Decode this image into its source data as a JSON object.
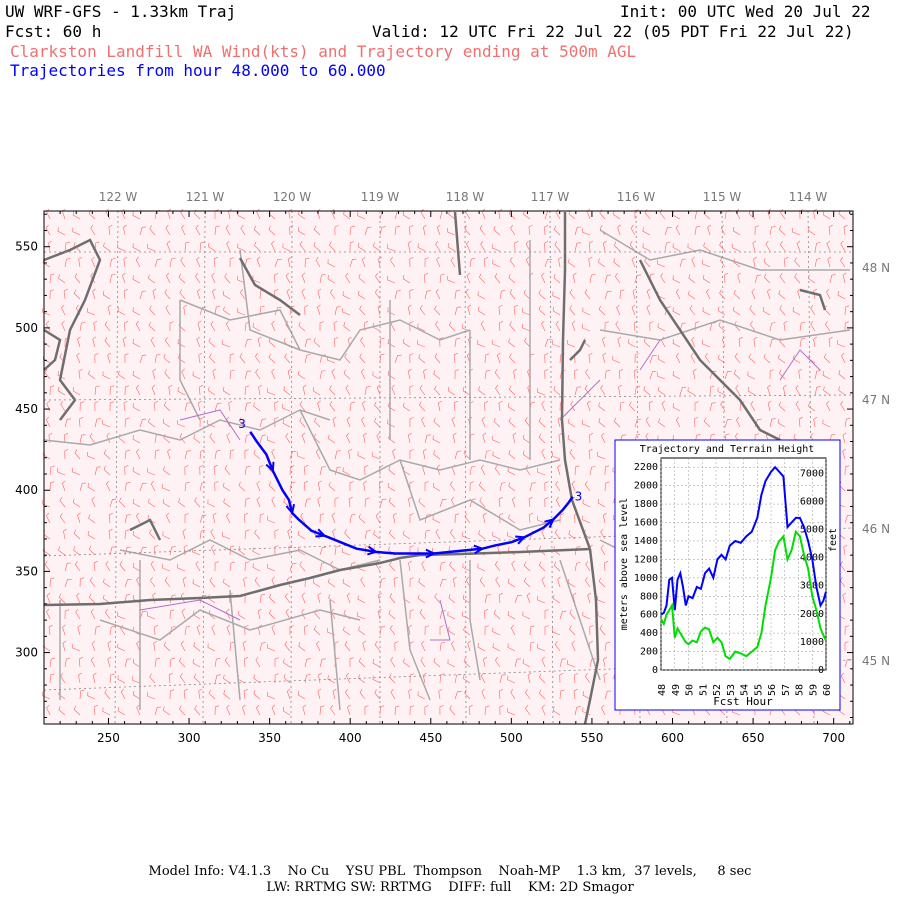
{
  "header": {
    "model": "UW WRF-GFS - 1.33km Traj",
    "init": "Init: 00 UTC Wed 20 Jul 22",
    "fcst": "Fcst:   60 h",
    "valid": "Valid: 12 UTC Fri 22 Jul 22 (05 PDT Fri 22 Jul 22)",
    "subtitle": "Clarkston Landfill WA Wind(kts) and Trajectory ending at 500m AGL",
    "traj_range": "Trajectories from hour  48.000 to  60.000"
  },
  "map": {
    "x_ticks": [
      "250",
      "300",
      "350",
      "400",
      "450",
      "500",
      "550",
      "600",
      "650",
      "700"
    ],
    "x_tick_values": [
      250,
      300,
      350,
      400,
      450,
      500,
      550,
      600,
      650,
      700
    ],
    "y_ticks": [
      "300",
      "350",
      "400",
      "450",
      "500",
      "550"
    ],
    "y_tick_values": [
      300,
      350,
      400,
      450,
      500,
      550
    ],
    "x_range": [
      210,
      712
    ],
    "y_range": [
      256,
      572
    ],
    "lon_labels": [
      "122 W",
      "121 W",
      "120 W",
      "119 W",
      "118 W",
      "117 W",
      "116 W",
      "115 W",
      "114 W"
    ],
    "lat_labels": [
      "48 N",
      "47 N",
      "46 N",
      "45 N"
    ],
    "trajectory_start_label": "3",
    "trajectory_end_label": "3",
    "trajectory_color": "#0000ff",
    "wind_barb_color": "#ff6060",
    "trajectory": [
      [
        338,
        436
      ],
      [
        342,
        430
      ],
      [
        348,
        422
      ],
      [
        352,
        412
      ],
      [
        358,
        400
      ],
      [
        362,
        394
      ],
      [
        364,
        386
      ],
      [
        368,
        382
      ],
      [
        376,
        375
      ],
      [
        384,
        372
      ],
      [
        394,
        368
      ],
      [
        404,
        364
      ],
      [
        416,
        362
      ],
      [
        428,
        361
      ],
      [
        440,
        361
      ],
      [
        452,
        361
      ],
      [
        462,
        362
      ],
      [
        472,
        363
      ],
      [
        482,
        364
      ],
      [
        490,
        366
      ],
      [
        500,
        368
      ],
      [
        508,
        371
      ],
      [
        514,
        374
      ],
      [
        520,
        377
      ],
      [
        526,
        382
      ],
      [
        532,
        388
      ],
      [
        536,
        393
      ],
      [
        538,
        396
      ]
    ]
  },
  "inset": {
    "title": "Trajectory and Terrain Height",
    "ylabel_left": "meters above sea level",
    "ylabel_right": "feet",
    "xlabel": "Fcst Hour",
    "left_ticks": [
      "0",
      "200",
      "400",
      "600",
      "800",
      "1000",
      "1200",
      "1400",
      "1600",
      "1800",
      "2000",
      "2200"
    ],
    "right_ticks": [
      "0",
      "1000",
      "2000",
      "3000",
      "4000",
      "5000",
      "6000",
      "7000"
    ],
    "x_ticks": [
      "48",
      "49",
      "50",
      "51",
      "52",
      "53",
      "54",
      "55",
      "56",
      "57",
      "58",
      "59",
      "60"
    ],
    "chart_data": {
      "type": "line",
      "xlabel": "Fcst Hour",
      "ylabel": "meters above sea level",
      "title": "Trajectory and Terrain Height",
      "xlim": [
        48,
        60
      ],
      "ylim": [
        0,
        2300
      ],
      "series": [
        {
          "color": "#0000ff",
          "x": [
            48.0,
            48.2,
            48.4,
            48.6,
            48.8,
            49.0,
            49.2,
            49.4,
            49.6,
            49.8,
            50.0,
            50.3,
            50.6,
            50.9,
            51.2,
            51.5,
            51.8,
            52.1,
            52.4,
            52.7,
            53.0,
            53.4,
            53.8,
            54.2,
            54.6,
            55.0,
            55.3,
            55.6,
            56.0,
            56.3,
            56.6,
            56.9,
            57.2,
            57.5,
            57.8,
            58.1,
            58.4,
            58.7,
            59.0,
            59.3,
            59.6,
            59.8,
            60.0
          ],
          "values": [
            600,
            620,
            700,
            980,
            1000,
            650,
            980,
            1050,
            900,
            700,
            800,
            780,
            900,
            880,
            1050,
            1100,
            1000,
            1200,
            1250,
            1200,
            1350,
            1400,
            1380,
            1450,
            1500,
            1650,
            1900,
            2050,
            2150,
            2200,
            2150,
            2100,
            1550,
            1600,
            1650,
            1650,
            1550,
            1400,
            1200,
            900,
            700,
            750,
            850
          ]
        },
        {
          "color": "#00dd00",
          "x": [
            48.0,
            48.2,
            48.4,
            48.6,
            48.8,
            49.0,
            49.2,
            49.4,
            49.6,
            49.8,
            50.0,
            50.3,
            50.6,
            50.9,
            51.2,
            51.5,
            51.8,
            52.1,
            52.4,
            52.7,
            53.0,
            53.4,
            53.8,
            54.2,
            54.6,
            55.0,
            55.3,
            55.6,
            56.0,
            56.3,
            56.6,
            56.9,
            57.2,
            57.5,
            57.8,
            58.1,
            58.4,
            58.7,
            59.0,
            59.3,
            59.6,
            59.8,
            60.0
          ],
          "values": [
            550,
            500,
            600,
            650,
            700,
            350,
            450,
            400,
            350,
            300,
            280,
            320,
            300,
            420,
            460,
            440,
            300,
            350,
            300,
            150,
            120,
            200,
            180,
            150,
            200,
            250,
            400,
            700,
            1000,
            1300,
            1400,
            1450,
            1200,
            1300,
            1500,
            1450,
            1250,
            1100,
            800,
            650,
            450,
            380,
            320
          ]
        }
      ]
    }
  },
  "footer": {
    "line1": "Model Info: V4.1.3    No Cu    YSU PBL  Thompson    Noah-MP    1.3 km,  37 levels,     8 sec",
    "line2": "LW: RRTMG SW: RRTMG    DIFF: full    KM: 2D Smagor"
  }
}
